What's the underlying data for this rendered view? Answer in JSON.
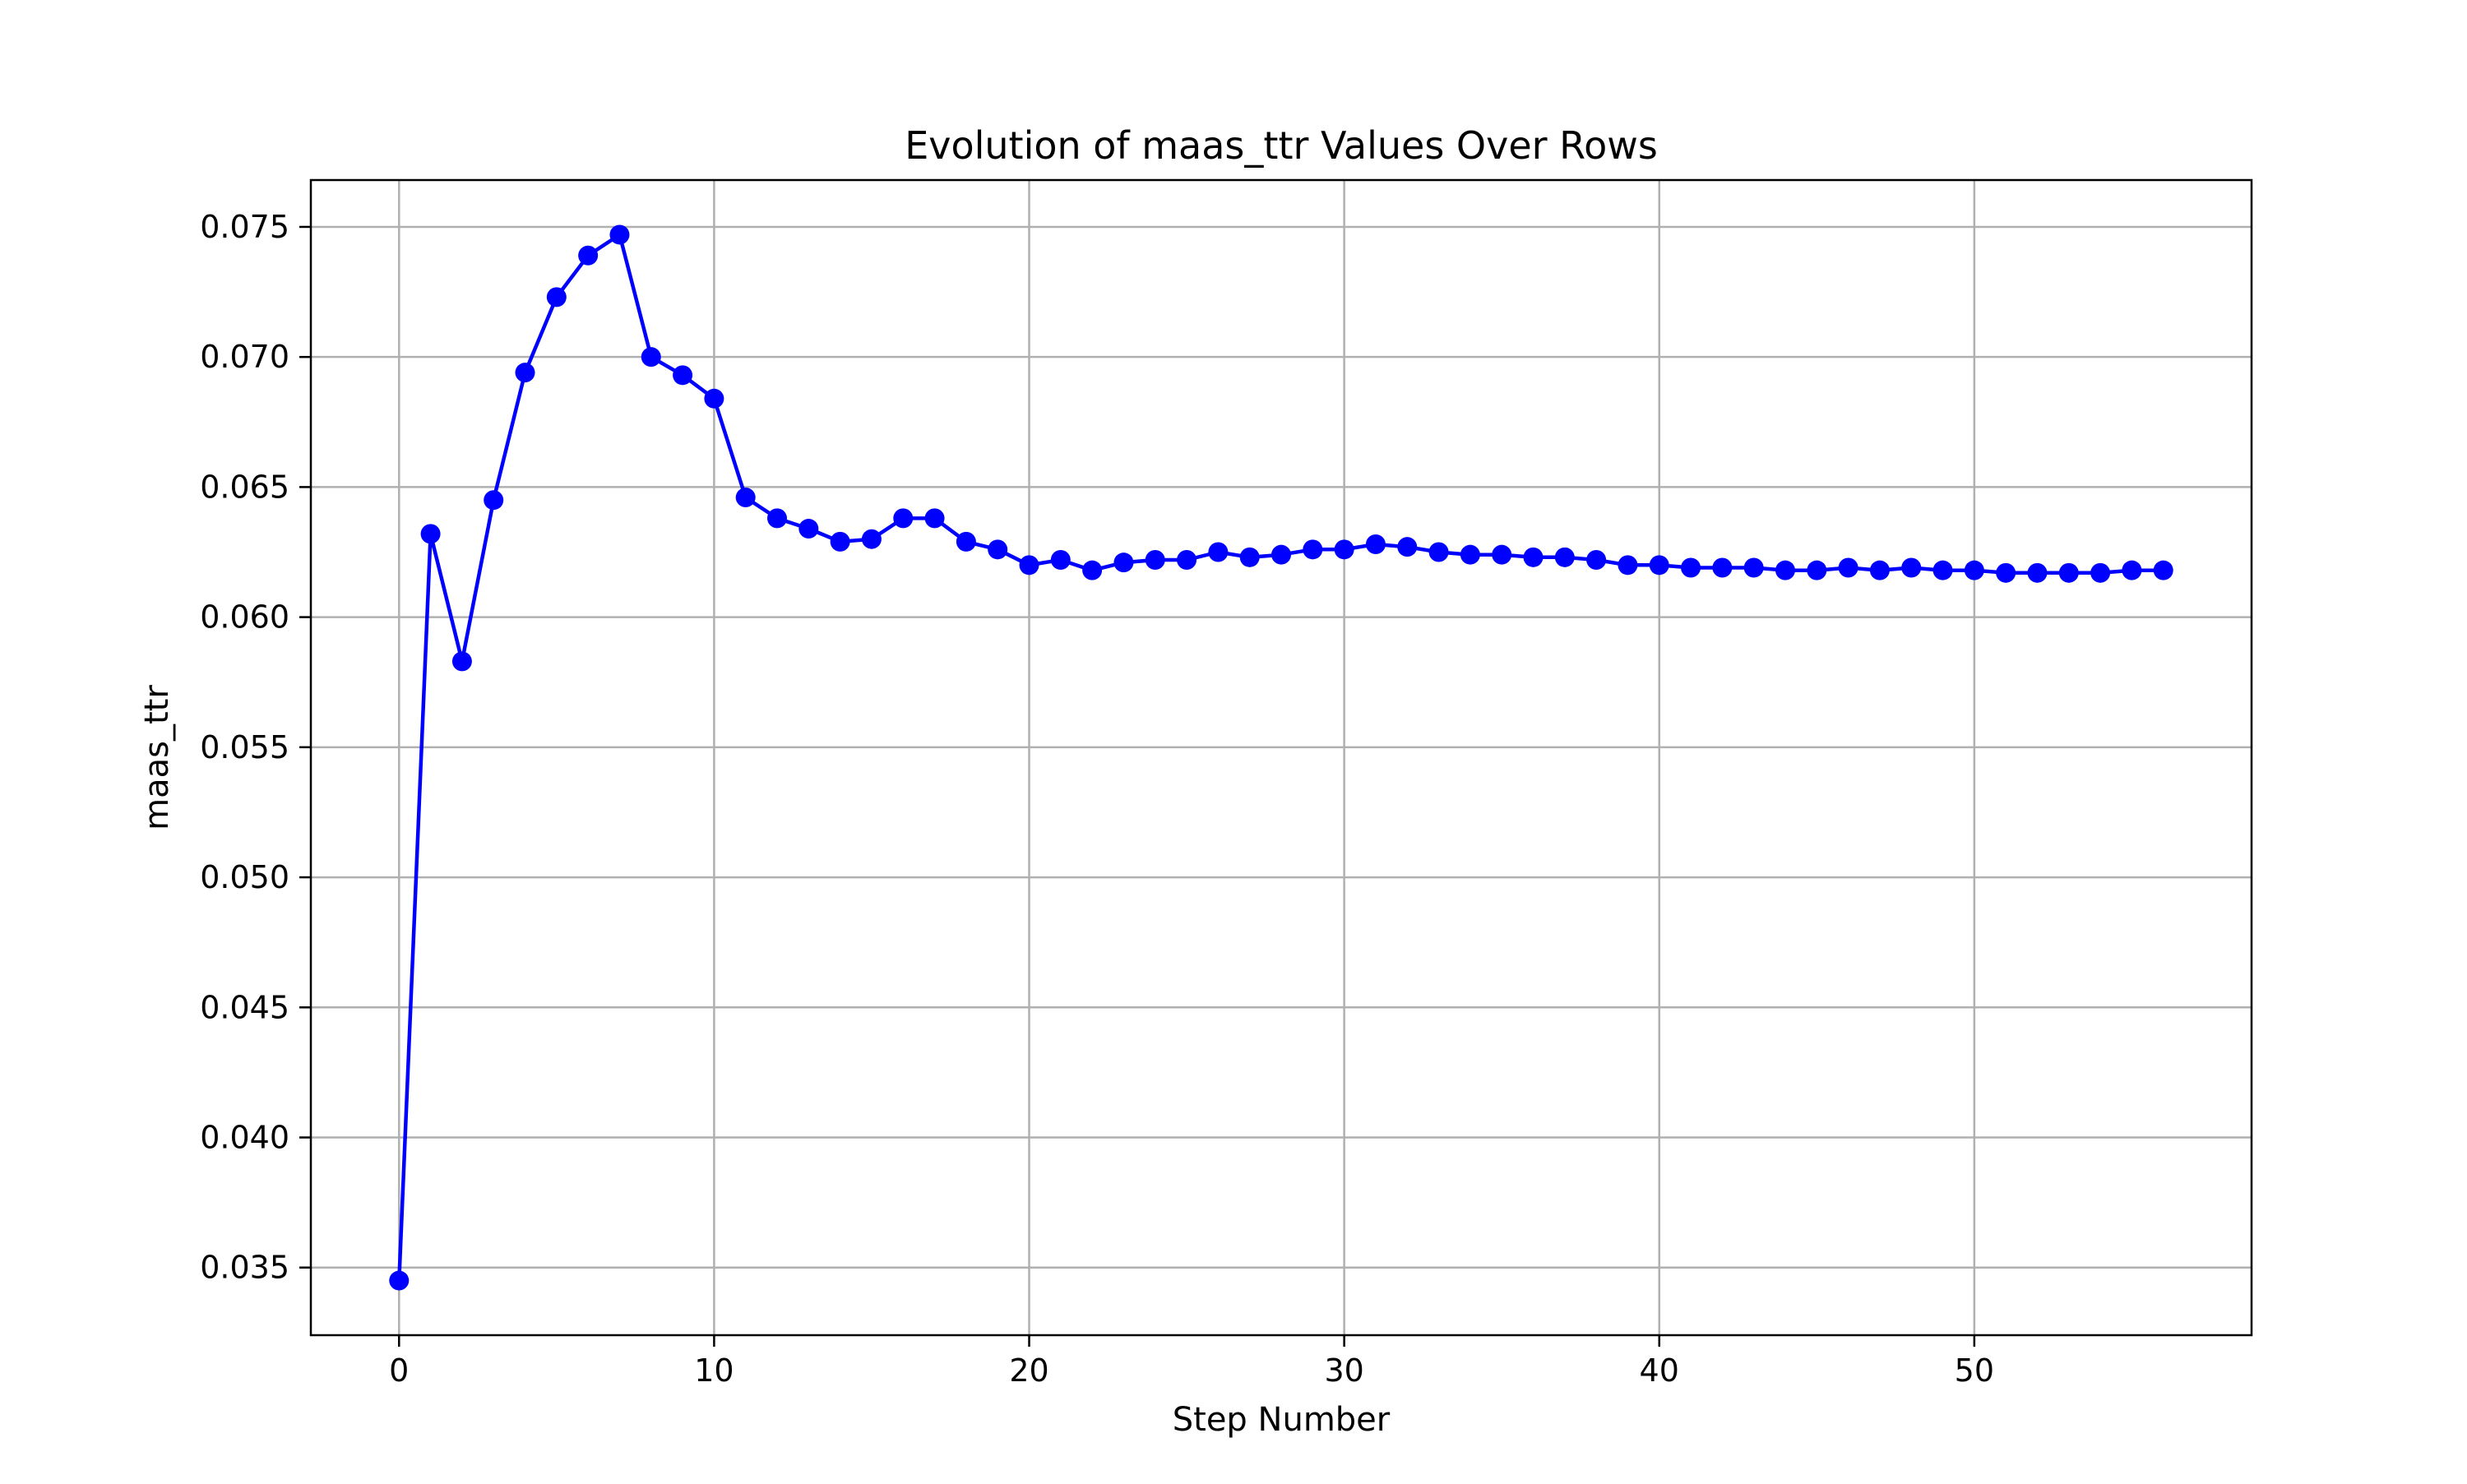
{
  "chart_data": {
    "type": "line",
    "title": "Evolution of maas_ttr Values Over Rows",
    "xlabel": "Step Number",
    "ylabel": "maas_ttr",
    "xlim": [
      -2.8,
      58.8
    ],
    "ylim": [
      0.0324,
      0.0768
    ],
    "x_ticks": [
      0,
      10,
      20,
      30,
      40,
      50
    ],
    "y_ticks": [
      0.035,
      0.04,
      0.045,
      0.05,
      0.055,
      0.06,
      0.065,
      0.07,
      0.075
    ],
    "y_tick_labels": [
      "0.035",
      "0.040",
      "0.045",
      "0.050",
      "0.055",
      "0.060",
      "0.065",
      "0.070",
      "0.075"
    ],
    "grid": true,
    "legend": "none",
    "series": [
      {
        "color": "#0000ff",
        "marker": "circle",
        "x": [
          0,
          1,
          2,
          3,
          4,
          5,
          6,
          7,
          8,
          9,
          10,
          11,
          12,
          13,
          14,
          15,
          16,
          17,
          18,
          19,
          20,
          21,
          22,
          23,
          24,
          25,
          26,
          27,
          28,
          29,
          30,
          31,
          32,
          33,
          34,
          35,
          36,
          37,
          38,
          39,
          40,
          41,
          42,
          43,
          44,
          45,
          46,
          47,
          48,
          49,
          50,
          51,
          52,
          53,
          54,
          55,
          56
        ],
        "values": [
          0.0345,
          0.0632,
          0.0583,
          0.0645,
          0.0694,
          0.0723,
          0.0739,
          0.0747,
          0.07,
          0.0693,
          0.0684,
          0.0646,
          0.0638,
          0.0634,
          0.0629,
          0.063,
          0.0638,
          0.0638,
          0.0629,
          0.0626,
          0.062,
          0.0622,
          0.0618,
          0.0621,
          0.0622,
          0.0622,
          0.0625,
          0.0623,
          0.0624,
          0.0626,
          0.0626,
          0.0628,
          0.0627,
          0.0625,
          0.0624,
          0.0624,
          0.0623,
          0.0623,
          0.0622,
          0.062,
          0.062,
          0.0619,
          0.0619,
          0.0619,
          0.0618,
          0.0618,
          0.0619,
          0.0618,
          0.0619,
          0.0618,
          0.0618,
          0.0617,
          0.0617,
          0.0617,
          0.0617,
          0.0618,
          0.0618
        ]
      }
    ]
  }
}
